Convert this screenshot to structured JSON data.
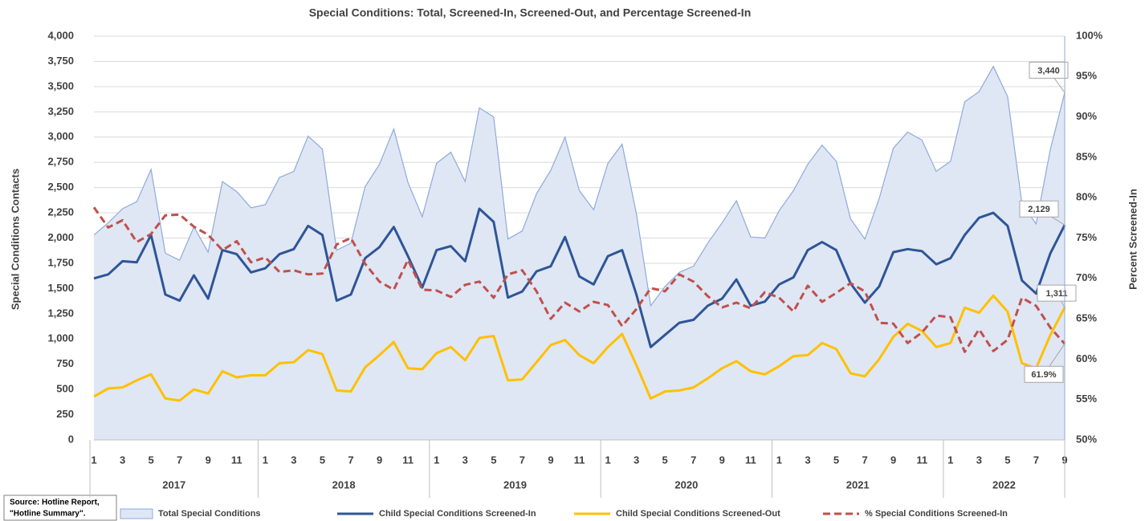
{
  "chart_data": {
    "type": "line",
    "title": "Special Conditions: Total, Screened-In, Screened-Out, and Percentage Screened-In",
    "y_label": "Special Conditions Contacts",
    "y2_label": "Percent Screened-In",
    "source": [
      "Source: Hotline Report,",
      "\"Hotline Summary\"."
    ],
    "categories": [
      "1",
      null,
      "3",
      null,
      "5",
      null,
      "7",
      null,
      "9",
      null,
      "11",
      null,
      "1",
      null,
      "3",
      null,
      "5",
      null,
      "7",
      null,
      "9",
      null,
      "11",
      null,
      "1",
      null,
      "3",
      null,
      "5",
      null,
      "7",
      null,
      "9",
      null,
      "11",
      null,
      "1",
      null,
      "3",
      null,
      "5",
      null,
      "7",
      null,
      "9",
      null,
      "11",
      null,
      "1",
      null,
      "3",
      null,
      "5",
      null,
      "7",
      null,
      "9",
      null,
      "11",
      null,
      "1",
      null,
      "3",
      null,
      "5",
      null,
      "7",
      null,
      "9"
    ],
    "years": [
      "2017",
      "2018",
      "2019",
      "2020",
      "2021",
      "2022"
    ],
    "ylim": [
      0,
      4000
    ],
    "yticks": [
      0,
      250,
      500,
      750,
      {
        "value": 1000,
        "label": "1,000"
      },
      {
        "value": 1250,
        "label": "1,250"
      },
      {
        "value": 1500,
        "label": "1,500"
      },
      {
        "value": 1750,
        "label": "1,750"
      },
      {
        "value": 2000,
        "label": "2,000"
      },
      {
        "value": 2250,
        "label": "2,250"
      },
      {
        "value": 2500,
        "label": "2,500"
      },
      {
        "value": 2750,
        "label": "2,750"
      },
      {
        "value": 3000,
        "label": "3,000"
      },
      {
        "value": 3250,
        "label": "3,250"
      },
      {
        "value": 3500,
        "label": "3,500"
      },
      {
        "value": 3750,
        "label": "3,750"
      },
      {
        "value": 4000,
        "label": "4,000"
      }
    ],
    "y2lim": [
      50,
      100
    ],
    "y2ticks": [
      {
        "value": 50,
        "label": "50%"
      },
      {
        "value": 55,
        "label": "55%"
      },
      {
        "value": 60,
        "label": "60%"
      },
      {
        "value": 65,
        "label": "65%"
      },
      {
        "value": 70,
        "label": "70%"
      },
      {
        "value": 75,
        "label": "75%"
      },
      {
        "value": 80,
        "label": "80%"
      },
      {
        "value": 85,
        "label": "85%"
      },
      {
        "value": 90,
        "label": "90%"
      },
      {
        "value": 95,
        "label": "95%"
      },
      {
        "value": 100,
        "label": "100%"
      }
    ],
    "grid": true,
    "series": [
      {
        "name": "Total Special Conditions",
        "style": "area",
        "color": "#8eaadb",
        "fill": "#dfe7f4",
        "values": [
          2030,
          2150,
          2290,
          2360,
          2680,
          1850,
          1780,
          2110,
          1860,
          2560,
          2460,
          2300,
          2330,
          2600,
          2660,
          3010,
          2880,
          1880,
          1950,
          2510,
          2730,
          3080,
          2550,
          2210,
          2740,
          2850,
          2560,
          3290,
          3200,
          1990,
          2070,
          2440,
          2670,
          3000,
          2470,
          2280,
          2740,
          2930,
          2240,
          1330,
          1520,
          1660,
          1720,
          1950,
          2150,
          2370,
          2010,
          2000,
          2270,
          2470,
          2730,
          2920,
          2760,
          2190,
          1990,
          2390,
          2890,
          3050,
          2970,
          2660,
          2760,
          3350,
          3450,
          3700,
          3400,
          2340,
          2140,
          2880,
          3440
        ],
        "value_labels": [
          null,
          null,
          null,
          null,
          null,
          null,
          null,
          null,
          null,
          null,
          null,
          null,
          null,
          null,
          null,
          null,
          null,
          null,
          null,
          null,
          null,
          null,
          null,
          null,
          null,
          null,
          null,
          null,
          null,
          null,
          null,
          null,
          null,
          null,
          null,
          null,
          null,
          null,
          null,
          null,
          null,
          null,
          null,
          null,
          null,
          null,
          null,
          null,
          null,
          null,
          null,
          null,
          null,
          null,
          null,
          null,
          null,
          null,
          null,
          null,
          null,
          null,
          null,
          null,
          null,
          null,
          null,
          null,
          "3,440"
        ]
      },
      {
        "name": "Child Special Conditions Screened-In",
        "style": "line",
        "color": "#2f5597",
        "values": [
          1600,
          1640,
          1770,
          1760,
          2030,
          1440,
          1380,
          1630,
          1400,
          1880,
          1840,
          1660,
          1700,
          1840,
          1890,
          2120,
          2030,
          1380,
          1440,
          1800,
          1910,
          2110,
          1820,
          1510,
          1880,
          1920,
          1770,
          2290,
          2160,
          1410,
          1470,
          1670,
          1720,
          2010,
          1620,
          1540,
          1820,
          1880,
          1440,
          920,
          1040,
          1160,
          1190,
          1330,
          1400,
          1590,
          1330,
          1370,
          1540,
          1610,
          1880,
          1960,
          1880,
          1550,
          1360,
          1520,
          1860,
          1890,
          1870,
          1740,
          1800,
          2030,
          2200,
          2250,
          2120,
          1580,
          1450,
          1850,
          2129
        ],
        "value_labels": [
          null,
          null,
          null,
          null,
          null,
          null,
          null,
          null,
          null,
          null,
          null,
          null,
          null,
          null,
          null,
          null,
          null,
          null,
          null,
          null,
          null,
          null,
          null,
          null,
          null,
          null,
          null,
          null,
          null,
          null,
          null,
          null,
          null,
          null,
          null,
          null,
          null,
          null,
          null,
          null,
          null,
          null,
          null,
          null,
          null,
          null,
          null,
          null,
          null,
          null,
          null,
          null,
          null,
          null,
          null,
          null,
          null,
          null,
          null,
          null,
          null,
          null,
          null,
          null,
          null,
          null,
          null,
          null,
          "2,129"
        ]
      },
      {
        "name": "Child Special Conditions Screened-Out",
        "style": "line",
        "color": "#ffc000",
        "values": [
          430,
          510,
          520,
          590,
          650,
          410,
          390,
          500,
          460,
          680,
          620,
          640,
          640,
          760,
          770,
          890,
          850,
          490,
          480,
          720,
          840,
          970,
          710,
          700,
          860,
          920,
          790,
          1010,
          1030,
          590,
          600,
          770,
          940,
          990,
          840,
          760,
          920,
          1050,
          740,
          410,
          480,
          490,
          520,
          610,
          710,
          780,
          680,
          650,
          730,
          830,
          840,
          960,
          900,
          660,
          630,
          800,
          1020,
          1150,
          1080,
          920,
          960,
          1310,
          1260,
          1430,
          1270,
          760,
          710,
          1040,
          1311
        ],
        "value_labels": [
          null,
          null,
          null,
          null,
          null,
          null,
          null,
          null,
          null,
          null,
          null,
          null,
          null,
          null,
          null,
          null,
          null,
          null,
          null,
          null,
          null,
          null,
          null,
          null,
          null,
          null,
          null,
          null,
          null,
          null,
          null,
          null,
          null,
          null,
          null,
          null,
          null,
          null,
          null,
          null,
          null,
          null,
          null,
          null,
          null,
          null,
          null,
          null,
          null,
          null,
          null,
          null,
          null,
          null,
          null,
          null,
          null,
          null,
          null,
          null,
          null,
          null,
          null,
          null,
          null,
          null,
          null,
          null,
          "1,311"
        ]
      },
      {
        "name": "% Special Conditions Screened-In",
        "style": "dashed",
        "color": "#c0504d",
        "axis": "y2",
        "values": [
          78.8,
          76.3,
          77.2,
          74.5,
          75.5,
          77.8,
          77.9,
          76.4,
          75.4,
          73.5,
          74.6,
          72.0,
          72.6,
          70.8,
          71.0,
          70.5,
          70.6,
          74.2,
          75.0,
          71.8,
          69.6,
          68.6,
          72.3,
          68.6,
          68.5,
          67.7,
          69.2,
          69.6,
          67.6,
          70.5,
          71.0,
          68.4,
          65.0,
          67.0,
          65.9,
          67.1,
          66.7,
          64.1,
          66.2,
          68.8,
          68.4,
          70.5,
          69.6,
          67.8,
          66.4,
          67.0,
          66.3,
          68.3,
          67.6,
          65.9,
          69.1,
          67.1,
          68.2,
          69.4,
          68.4,
          64.5,
          64.4,
          62.0,
          63.3,
          65.4,
          65.2,
          60.9,
          63.7,
          61.0,
          62.4,
          67.6,
          66.6,
          63.9,
          61.9
        ],
        "value_labels": [
          null,
          null,
          null,
          null,
          null,
          null,
          null,
          null,
          null,
          null,
          null,
          null,
          null,
          null,
          null,
          null,
          null,
          null,
          null,
          null,
          null,
          null,
          null,
          null,
          null,
          null,
          null,
          null,
          null,
          null,
          null,
          null,
          null,
          null,
          null,
          null,
          null,
          null,
          null,
          null,
          null,
          null,
          null,
          null,
          null,
          null,
          null,
          null,
          null,
          null,
          null,
          null,
          null,
          null,
          null,
          null,
          null,
          null,
          null,
          null,
          null,
          null,
          null,
          null,
          null,
          null,
          null,
          null,
          "61.9%"
        ]
      }
    ]
  }
}
